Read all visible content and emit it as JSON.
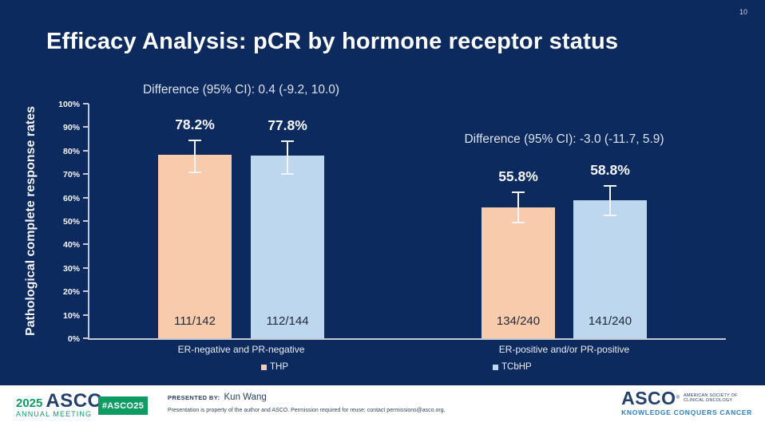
{
  "page_number": "10",
  "title": "Efficacy Analysis: pCR by hormone receptor status",
  "colors": {
    "background": "#0c2a5e",
    "thp": "#f8cbad",
    "tcbhp": "#bdd7ee",
    "axis": "#c2c8d4",
    "asco_green": "#0f9c63",
    "asco_navy": "#24406e",
    "asco_azure": "#2e80c3"
  },
  "chart_data": {
    "type": "bar",
    "ylabel": "Pathological complete response rates",
    "ylim": [
      0,
      100
    ],
    "ytick_step": 10,
    "ytick_suffix": "%",
    "grid": false,
    "legend_position": "bottom",
    "legend": [
      {
        "label": "THP",
        "color": "#f8cbad"
      },
      {
        "label": "TCbHP",
        "color": "#bdd7ee"
      }
    ],
    "groups": [
      {
        "category": "ER-negative and PR-negative",
        "annotation": "Difference (95% CI): 0.4 (-9.2, 10.0)",
        "bars": [
          {
            "series": "THP",
            "value": 78.2,
            "label": "78.2%",
            "count": "111/142",
            "ci_low": 70.7,
            "ci_high": 84.3
          },
          {
            "series": "TCbHP",
            "value": 77.8,
            "label": "77.8%",
            "count": "112/144",
            "ci_low": 70.2,
            "ci_high": 84.0
          }
        ]
      },
      {
        "category": "ER-positive and/or PR-positive",
        "annotation": "Difference (95% CI): -3.0 (-11.7, 5.9)",
        "bars": [
          {
            "series": "THP",
            "value": 55.8,
            "label": "55.8%",
            "count": "134/240",
            "ci_low": 49.3,
            "ci_high": 62.2
          },
          {
            "series": "TCbHP",
            "value": 58.8,
            "label": "58.8%",
            "count": "141/240",
            "ci_low": 52.3,
            "ci_high": 65.0
          }
        ]
      }
    ]
  },
  "footer": {
    "year": "2025",
    "org": "ASCO",
    "reg": "®",
    "meeting": "ANNUAL MEETING",
    "hashtag": "#ASCO25",
    "presented_by_label": "PRESENTED BY:",
    "presenter": "Kun Wang",
    "disclaimer": "Presentation is property of the author and ASCO. Permission required for reuse; contact permissions@asco.org.",
    "logo_org": "ASCO",
    "logo_society_line1": "AMERICAN SOCIETY OF",
    "logo_society_line2": "CLINICAL ONCOLOGY",
    "logo_tagline": "KNOWLEDGE CONQUERS CANCER"
  }
}
